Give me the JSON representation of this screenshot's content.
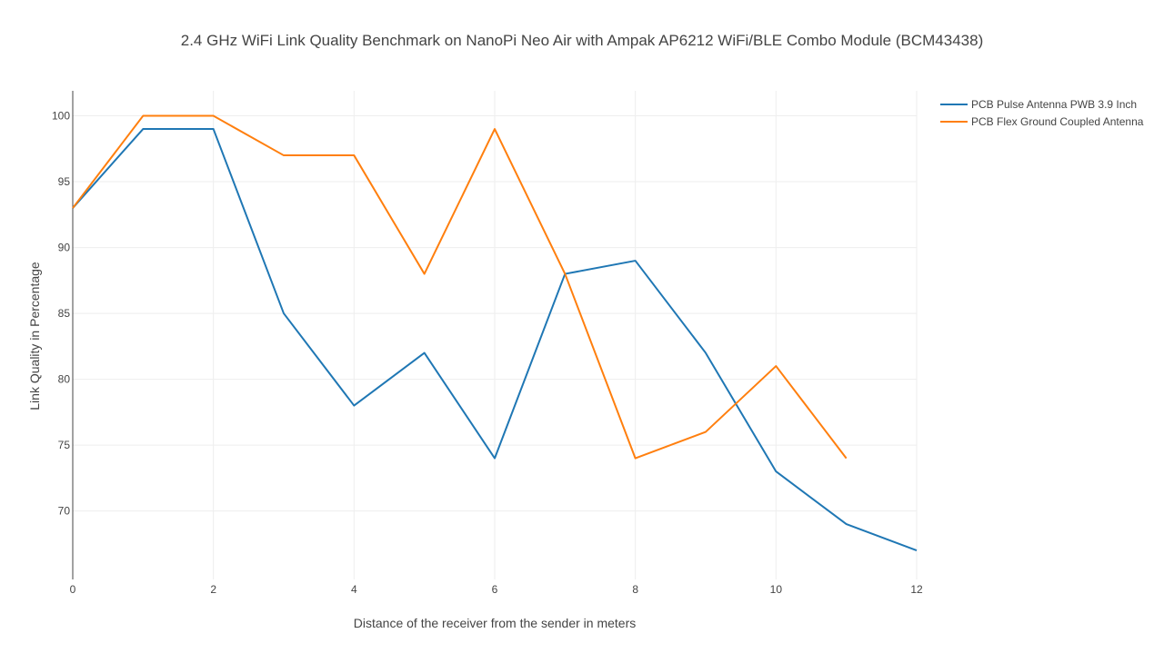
{
  "chart_data": {
    "type": "line",
    "title": "2.4 GHz WiFi Link Quality Benchmark on NanoPi Neo Air with Ampak AP6212 WiFi/BLE Combo Module (BCM43438)",
    "xlabel": "Distance of the receiver from the sender in meters",
    "ylabel": "Link Quality in Percentage",
    "xlim": [
      0,
      12
    ],
    "ylim": [
      64.8,
      101.9
    ],
    "x_ticks": [
      0,
      2,
      4,
      6,
      8,
      10,
      12
    ],
    "y_ticks": [
      70,
      75,
      80,
      85,
      90,
      95,
      100
    ],
    "grid": true,
    "legend_position": "top-right",
    "series": [
      {
        "name": "PCB Pulse Antenna PWB 3.9 Inch",
        "color": "#1f77b4",
        "x": [
          0,
          1,
          2,
          3,
          4,
          5,
          6,
          7,
          8,
          9,
          10,
          11,
          12
        ],
        "values": [
          93,
          99,
          99,
          85,
          78,
          82,
          74,
          88,
          89,
          82,
          73,
          69,
          67
        ]
      },
      {
        "name": "PCB Flex Ground Coupled Antenna",
        "color": "#ff7f0e",
        "x": [
          0,
          1,
          2,
          3,
          4,
          5,
          6,
          7,
          8,
          9,
          10,
          11
        ],
        "values": [
          93,
          100,
          100,
          97,
          97,
          88,
          99,
          88,
          74,
          76,
          81,
          74
        ]
      }
    ]
  }
}
